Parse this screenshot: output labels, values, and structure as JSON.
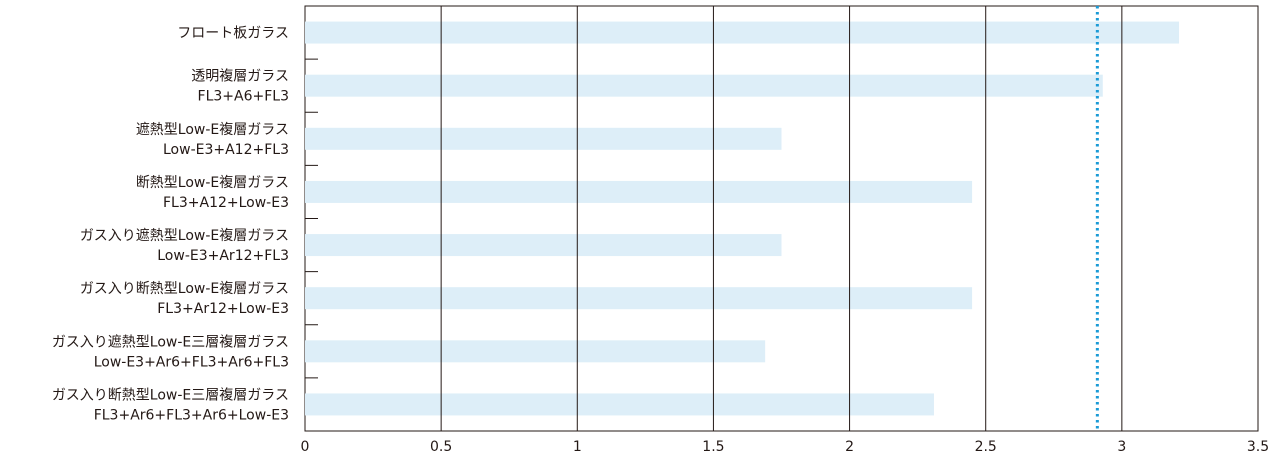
{
  "chart_data": {
    "type": "bar",
    "orientation": "horizontal",
    "categories": [
      [
        "フロート板ガラス"
      ],
      [
        "透明複層ガラス",
        "FL3+A6+FL3"
      ],
      [
        "遮熱型Low-E複層ガラス",
        "Low-E3+A12+FL3"
      ],
      [
        "断熱型Low-E複層ガラス",
        "FL3+A12+Low-E3"
      ],
      [
        "ガス入り遮熱型Low-E複層ガラス",
        "Low-E3+Ar12+FL3"
      ],
      [
        "ガス入り断熱型Low-E複層ガラス",
        "FL3+Ar12+Low-E3"
      ],
      [
        "ガス入り遮熱型Low-E三層複層ガラス",
        "Low-E3+Ar6+FL3+Ar6+FL3"
      ],
      [
        "ガス入り断熱型Low-E三層複層ガラス",
        "FL3+Ar6+FL3+Ar6+Low-E3"
      ]
    ],
    "values": [
      3.21,
      2.93,
      1.75,
      2.45,
      1.75,
      2.45,
      1.69,
      2.31
    ],
    "xlim": [
      0,
      3.5
    ],
    "xticks": [
      0,
      0.5,
      1,
      1.5,
      2,
      2.5,
      3,
      3.5
    ],
    "xtick_labels": [
      "0",
      "0.5",
      "1",
      "1.5",
      "2",
      "2.5",
      "3",
      "3.5"
    ],
    "reference_line": {
      "value": 2.91,
      "style": "dotted"
    },
    "grid": "vertical",
    "colors": {
      "bar": "#ddeef8",
      "grid": "#231815",
      "reference": "#1a9ad6",
      "text": "#231815"
    }
  }
}
